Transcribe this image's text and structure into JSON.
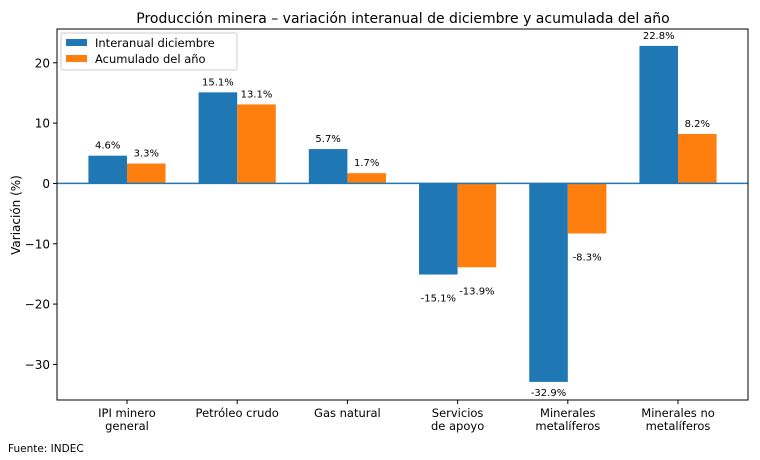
{
  "chart_data": {
    "type": "bar",
    "title": "Producción minera – variación interanual de diciembre y acumulada del año",
    "xlabel": "",
    "ylabel": "Variación (%)",
    "ylim": [
      -35.9,
      25.6
    ],
    "yticks": [
      20,
      10,
      0,
      -10,
      -20,
      -30
    ],
    "ytick_labels": [
      "20",
      "10",
      "0",
      "−10",
      "−20",
      "−30"
    ],
    "categories": [
      [
        "IPI minero",
        "general"
      ],
      [
        "Petróleo crudo"
      ],
      [
        "Gas natural"
      ],
      [
        "Servicios",
        "de apoyo"
      ],
      [
        "Minerales",
        "metalíferos"
      ],
      [
        "Minerales no",
        "metalíferos"
      ]
    ],
    "series": [
      {
        "name": "Interanual diciembre",
        "color": "#1f77b4",
        "values": [
          4.6,
          15.1,
          5.7,
          -15.1,
          -32.9,
          22.8
        ],
        "labels": [
          "4.6%",
          "15.1%",
          "5.7%",
          "-15.1%",
          "-32.9%",
          "22.8%"
        ]
      },
      {
        "name": "Acumulado del año",
        "color": "#ff7f0e",
        "values": [
          3.3,
          13.1,
          1.7,
          -13.9,
          -8.3,
          8.2
        ],
        "labels": [
          "3.3%",
          "13.1%",
          "1.7%",
          "-13.9%",
          "-8.3%",
          "8.2%"
        ]
      }
    ],
    "zero_line_color": "#1f77b4",
    "legend_position": "top-left",
    "grid": false
  },
  "footer": {
    "source": "Fuente: INDEC"
  }
}
